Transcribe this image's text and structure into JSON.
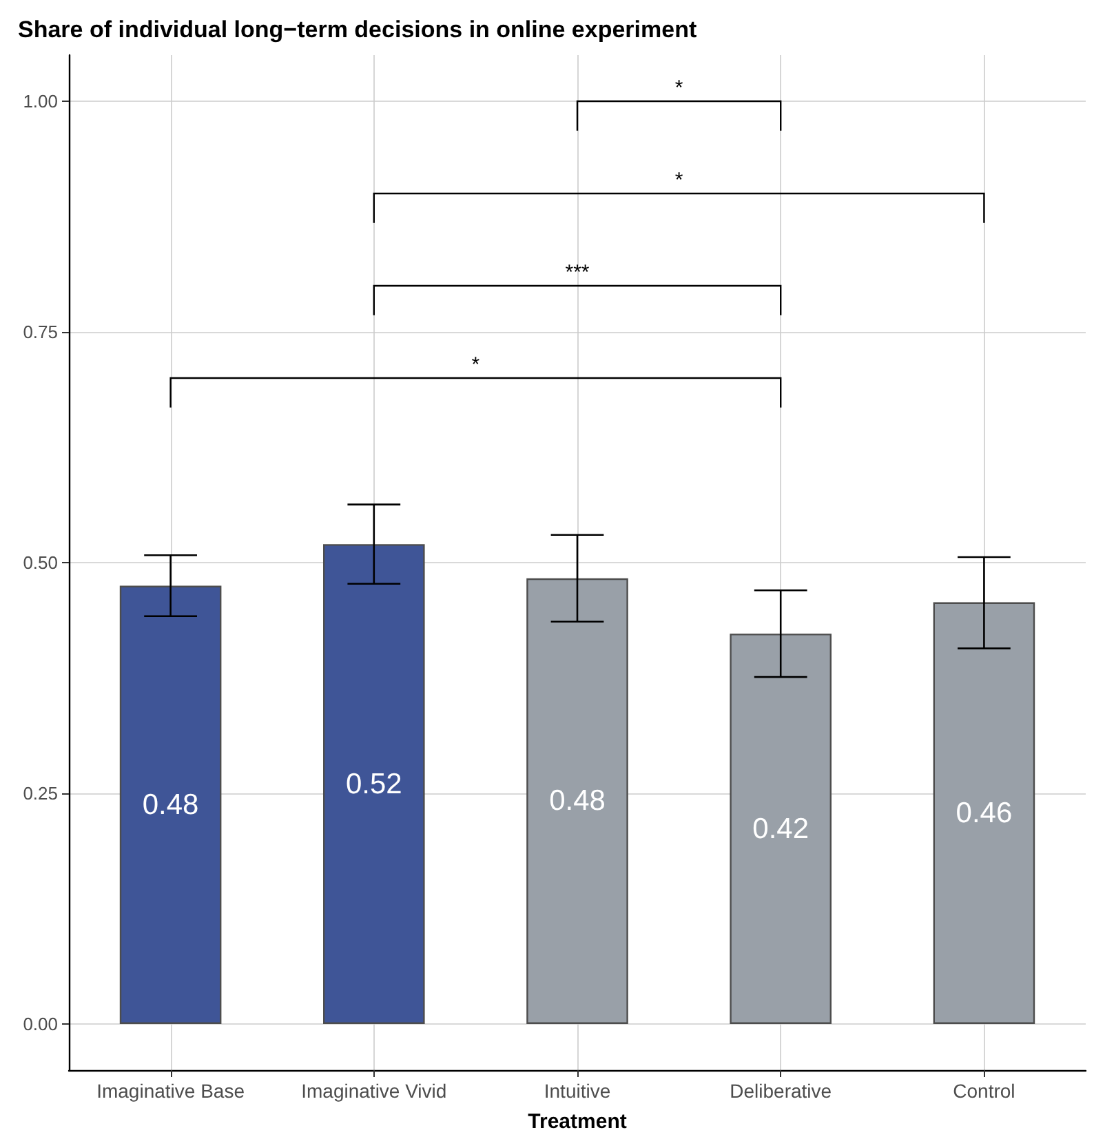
{
  "chart_data": {
    "type": "bar",
    "title": "Share of individual long−term decisions in online experiment",
    "xlabel": "Treatment",
    "categories": [
      "Imaginative Base",
      "Imaginative Vivid",
      "Intuitive",
      "Deliberative",
      "Control"
    ],
    "values": [
      0.475,
      0.52,
      0.483,
      0.423,
      0.457
    ],
    "colors": [
      "#3f5597",
      "#3f5597",
      "#99a0a8",
      "#99a0a8",
      "#99a0a8"
    ],
    "errors": [
      [
        0.442,
        0.508
      ],
      [
        0.477,
        0.563
      ],
      [
        0.436,
        0.53
      ],
      [
        0.376,
        0.47
      ],
      [
        0.407,
        0.506
      ]
    ],
    "value_labels": [
      "0.48",
      "0.52",
      "0.48",
      "0.42",
      "0.46"
    ],
    "ylim": [
      -0.05,
      1.05
    ],
    "yticks": [
      {
        "value": 0,
        "label": "0.00"
      },
      {
        "value": 0.25,
        "label": "0.25"
      },
      {
        "value": 0.5,
        "label": "0.50"
      },
      {
        "value": 0.75,
        "label": "0.75"
      },
      {
        "value": 1,
        "label": "1.00"
      }
    ],
    "grid": true,
    "annotations": [
      "*",
      "*",
      "***",
      "*"
    ]
  }
}
